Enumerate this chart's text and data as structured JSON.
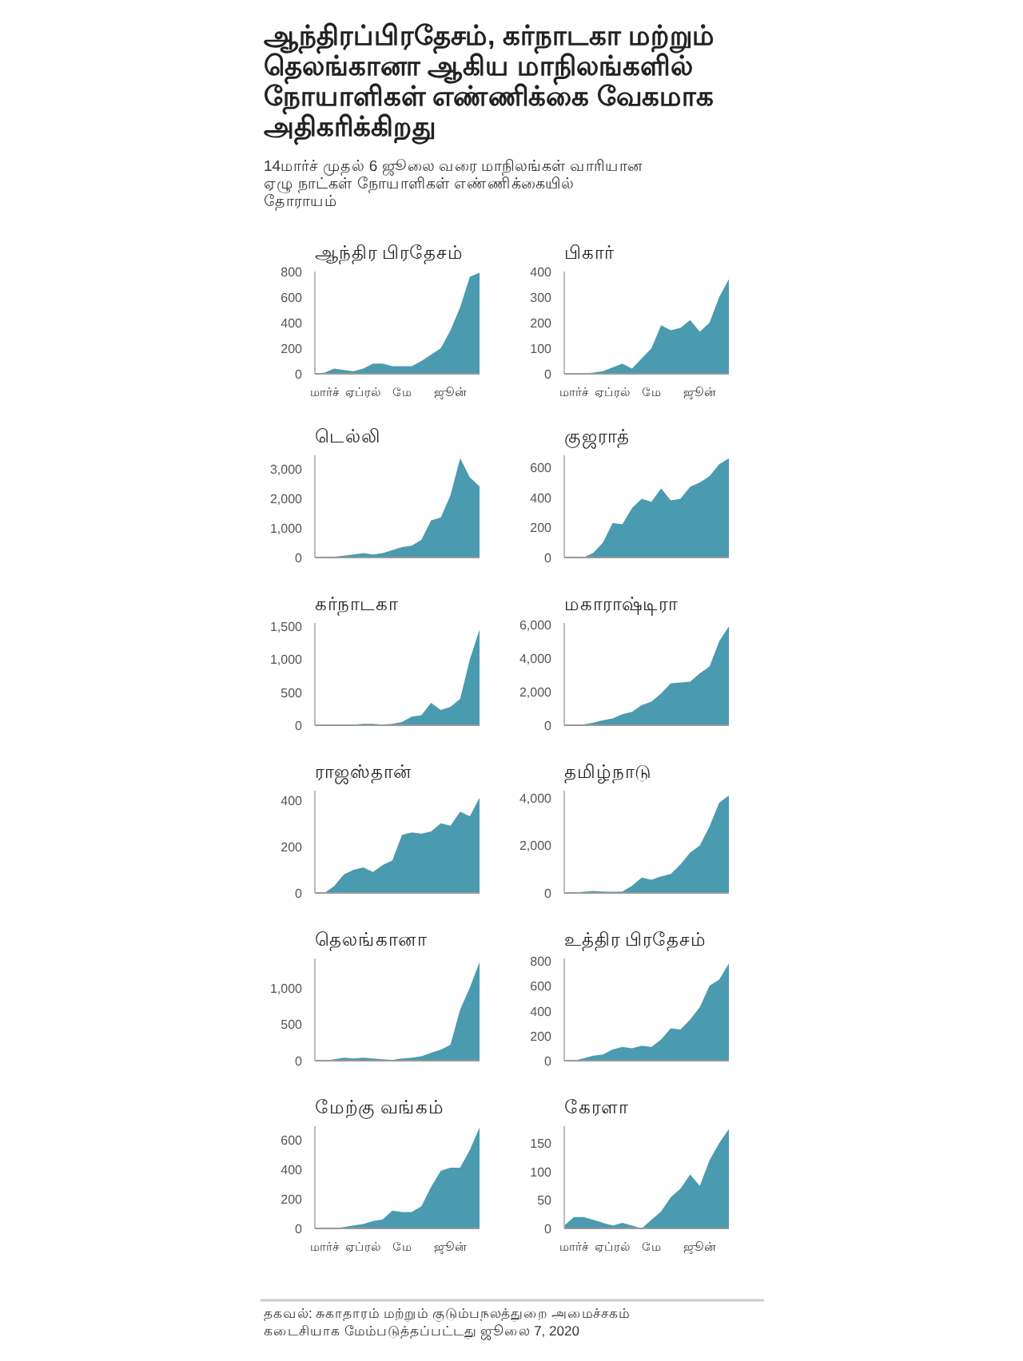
{
  "chart_data": [
    {
      "type": "other",
      "title": "ஆந்திரப்பிரதேசம், கர்நாடகா மற்றும் தெலங்கானா ஆகிய மாநிலங்களில் நோயாளிகள் எண்ணிக்கை வேகமாக அதிகரிக்கிறது",
      "subtitle": "14மார்ச் முதல் 6 ஜூலை வரை மாநிலங்கள் வாரியான ஏழு நாட்கள் நோயாளிகள் எண்ணிக்கையில் தோராயம்",
      "annotations": [
        "தகவல்: சுகாதாரம் மற்றும் குடும்பநலத்துறை அமைச்சகம்",
        "கடைசியாக மேம்படுத்தப்பட்டது ஜூலை 7, 2020"
      ]
    },
    {
      "type": "area",
      "title": "ஆந்திர பிரதேசம்",
      "color": "#4a9ab0",
      "categories": [
        null,
        "மார்ச்",
        null,
        null,
        null,
        "ஏப்ரல்",
        null,
        null,
        null,
        "மே",
        null,
        null,
        null,
        null,
        "ஜூன்",
        null,
        null,
        null
      ],
      "values": [
        0,
        10,
        40,
        30,
        20,
        40,
        80,
        80,
        60,
        60,
        60,
        100,
        150,
        200,
        340,
        520,
        760,
        790
      ],
      "ylim": [
        0,
        800
      ],
      "yticks": [
        0,
        200,
        400,
        600,
        800
      ]
    },
    {
      "type": "area",
      "title": "பிகார்",
      "color": "#4a9ab0",
      "categories": [
        null,
        "மார்ச்",
        null,
        null,
        null,
        "ஏப்ரல்",
        null,
        null,
        null,
        "மே",
        null,
        null,
        null,
        null,
        "ஜூன்",
        null,
        null,
        null
      ],
      "values": [
        0,
        0,
        0,
        5,
        10,
        25,
        40,
        20,
        60,
        100,
        190,
        170,
        180,
        210,
        165,
        200,
        300,
        370
      ],
      "ylim": [
        0,
        400
      ],
      "yticks": [
        0,
        100,
        200,
        300,
        400
      ]
    },
    {
      "type": "area",
      "title": "டெல்லி",
      "color": "#4a9ab0",
      "categories": [
        null,
        null,
        null,
        null,
        null,
        null,
        null,
        null,
        null,
        null,
        null,
        null,
        null,
        null,
        null,
        null,
        null,
        null
      ],
      "values": [
        0,
        0,
        30,
        60,
        100,
        150,
        100,
        150,
        250,
        350,
        400,
        600,
        1250,
        1350,
        2100,
        3350,
        2700,
        2400
      ],
      "ylim": [
        0,
        3450
      ],
      "yticks": [
        0,
        {
          "value": 1000,
          "label": "1,000"
        },
        {
          "value": 2000,
          "label": "2,000"
        },
        {
          "value": 3000,
          "label": "3,000"
        }
      ],
      "tick_labels": "y"
    },
    {
      "type": "area",
      "title": "குஜராத்",
      "color": "#4a9ab0",
      "categories": [
        null,
        null,
        null,
        null,
        null,
        null,
        null,
        null,
        null,
        null,
        null,
        null,
        null,
        null,
        null,
        null,
        null,
        null
      ],
      "values": [
        0,
        0,
        0,
        30,
        100,
        230,
        220,
        330,
        390,
        370,
        460,
        380,
        390,
        470,
        500,
        540,
        620,
        660
      ],
      "ylim": [
        0,
        680
      ],
      "yticks": [
        0,
        200,
        400,
        600
      ],
      "tick_labels": "y"
    },
    {
      "type": "area",
      "title": "கர்நாடகா",
      "color": "#4a9ab0",
      "categories": [
        null,
        null,
        null,
        null,
        null,
        null,
        null,
        null,
        null,
        null,
        null,
        null,
        null,
        null,
        null,
        null,
        null,
        null
      ],
      "values": [
        0,
        0,
        10,
        10,
        10,
        20,
        20,
        10,
        20,
        50,
        130,
        150,
        340,
        230,
        280,
        400,
        1000,
        1450
      ],
      "ylim": [
        0,
        1550
      ],
      "yticks": [
        0,
        500,
        {
          "value": 1000,
          "label": "1,000"
        },
        {
          "value": 1500,
          "label": "1,500"
        }
      ],
      "tick_labels": "y"
    },
    {
      "type": "area",
      "title": "மகாராஷ்டிரா",
      "color": "#4a9ab0",
      "categories": [
        null,
        null,
        null,
        null,
        null,
        null,
        null,
        null,
        null,
        null,
        null,
        null,
        null,
        null,
        null,
        null,
        null,
        null
      ],
      "values": [
        0,
        0,
        50,
        150,
        300,
        400,
        650,
        800,
        1200,
        1400,
        1900,
        2500,
        2550,
        2600,
        3100,
        3500,
        5000,
        5900
      ],
      "ylim": [
        0,
        6100
      ],
      "yticks": [
        0,
        {
          "value": 2000,
          "label": "2,000"
        },
        {
          "value": 4000,
          "label": "4,000"
        },
        {
          "value": 6000,
          "label": "6,000"
        }
      ],
      "tick_labels": "y"
    },
    {
      "type": "area",
      "title": "ராஜஸ்தான்",
      "color": "#4a9ab0",
      "categories": [
        null,
        null,
        null,
        null,
        null,
        null,
        null,
        null,
        null,
        null,
        null,
        null,
        null,
        null,
        null,
        null,
        null,
        null
      ],
      "values": [
        0,
        0,
        30,
        80,
        100,
        110,
        90,
        120,
        140,
        250,
        260,
        255,
        265,
        300,
        290,
        350,
        330,
        410
      ],
      "ylim": [
        0,
        440
      ],
      "yticks": [
        0,
        200,
        400
      ],
      "tick_labels": "y"
    },
    {
      "type": "area",
      "title": "தமிழ்நாடு",
      "color": "#4a9ab0",
      "categories": [
        null,
        null,
        null,
        null,
        null,
        null,
        null,
        null,
        null,
        null,
        null,
        null,
        null,
        null,
        null,
        null,
        null,
        null
      ],
      "values": [
        0,
        0,
        50,
        80,
        60,
        50,
        60,
        300,
        650,
        550,
        700,
        800,
        1200,
        1700,
        2000,
        2800,
        3800,
        4100
      ],
      "ylim": [
        0,
        4300
      ],
      "yticks": [
        0,
        {
          "value": 2000,
          "label": "2,000"
        },
        {
          "value": 4000,
          "label": "4,000"
        }
      ],
      "tick_labels": "y"
    },
    {
      "type": "area",
      "title": "தெலங்கானா",
      "color": "#4a9ab0",
      "categories": [
        null,
        null,
        null,
        null,
        null,
        null,
        null,
        null,
        null,
        null,
        null,
        null,
        null,
        null,
        null,
        null,
        null,
        null
      ],
      "values": [
        0,
        0,
        20,
        40,
        30,
        40,
        30,
        20,
        10,
        30,
        40,
        60,
        110,
        150,
        220,
        700,
        1000,
        1350
      ],
      "ylim": [
        0,
        1400
      ],
      "yticks": [
        0,
        500,
        {
          "value": 1000,
          "label": "1,000"
        }
      ],
      "tick_labels": "y"
    },
    {
      "type": "area",
      "title": "உத்திர பிரதேசம்",
      "color": "#4a9ab0",
      "categories": [
        null,
        null,
        null,
        null,
        null,
        null,
        null,
        null,
        null,
        null,
        null,
        null,
        null,
        null,
        null,
        null,
        null,
        null
      ],
      "values": [
        0,
        0,
        20,
        40,
        50,
        90,
        110,
        100,
        120,
        110,
        170,
        260,
        250,
        330,
        430,
        600,
        650,
        780
      ],
      "ylim": [
        0,
        820
      ],
      "yticks": [
        0,
        200,
        400,
        600,
        800
      ],
      "tick_labels": "y"
    },
    {
      "type": "area",
      "title": "மேற்கு வங்கம்",
      "color": "#4a9ab0",
      "categories": [
        null,
        "மார்ச்",
        null,
        null,
        null,
        "ஏப்ரல்",
        null,
        null,
        null,
        "மே",
        null,
        null,
        null,
        null,
        "ஜூன்",
        null,
        null,
        null
      ],
      "values": [
        0,
        0,
        0,
        10,
        20,
        30,
        50,
        60,
        120,
        110,
        110,
        150,
        280,
        390,
        410,
        410,
        530,
        680
      ],
      "ylim": [
        0,
        690
      ],
      "yticks": [
        0,
        200,
        400,
        600
      ]
    },
    {
      "type": "area",
      "title": "கேரளா",
      "color": "#4a9ab0",
      "categories": [
        null,
        "மார்ச்",
        null,
        null,
        null,
        "ஏப்ரல்",
        null,
        null,
        null,
        "மே",
        null,
        null,
        null,
        null,
        "ஜூன்",
        null,
        null,
        null
      ],
      "values": [
        5,
        20,
        20,
        15,
        10,
        5,
        10,
        5,
        0,
        15,
        30,
        55,
        70,
        95,
        75,
        120,
        150,
        175
      ],
      "ylim": [
        0,
        180
      ],
      "yticks": [
        0,
        50,
        100,
        150
      ]
    }
  ]
}
